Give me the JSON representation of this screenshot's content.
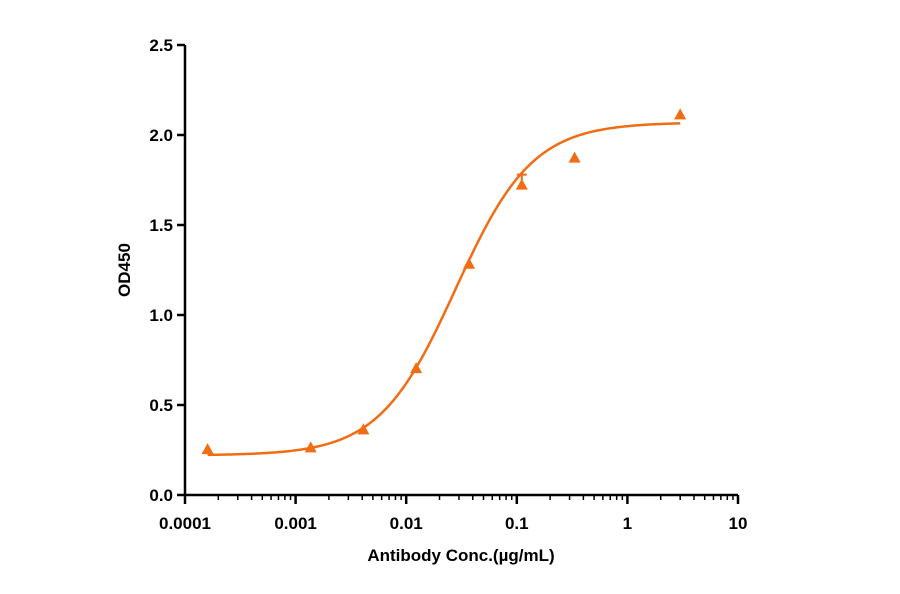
{
  "chart_data": {
    "type": "scatter",
    "title": "",
    "xlabel": "Antibody Conc.(µg/mL)",
    "ylabel": "OD450",
    "x_scale": "log",
    "xlim": [
      0.0001,
      10
    ],
    "ylim": [
      0.0,
      2.5
    ],
    "x_tick_labels": [
      "0.0001",
      "0.001",
      "0.01",
      "0.1",
      "1",
      "10"
    ],
    "y_tick_labels": [
      "0.0",
      "0.5",
      "1.0",
      "1.5",
      "2.0",
      "2.5"
    ],
    "grid": false,
    "legend": "none",
    "series": [
      {
        "color": "#f26c13",
        "marker": "triangle",
        "x": [
          0.00016,
          0.00137,
          0.0041,
          0.0123,
          0.037,
          0.111,
          0.333,
          3.0
        ],
        "y": [
          0.25,
          0.26,
          0.36,
          0.7,
          1.28,
          1.72,
          1.87,
          2.11
        ],
        "error_upper": [
          0,
          0,
          0,
          0,
          0,
          0.06,
          0,
          0
        ],
        "fit": {
          "bottom": 0.22,
          "top": 2.07,
          "ec50": 0.028,
          "hill": 1.25
        }
      }
    ]
  }
}
